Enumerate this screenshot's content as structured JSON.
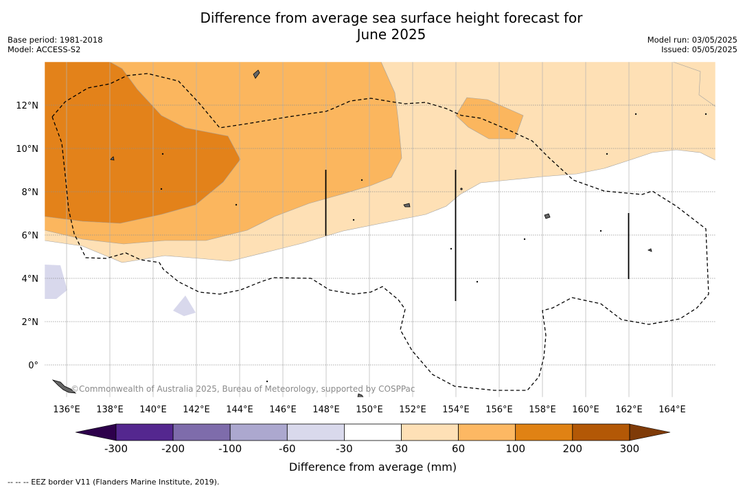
{
  "title_line1": "Difference from average sea surface height forecast for",
  "title_line2": "June 2025",
  "base_period": "Base period: 1981-2018",
  "model": "Model: ACCESS-S2",
  "model_run": "Model run: 03/05/2025",
  "issued": "Issued: 05/05/2025",
  "copyright": "©Commonwealth of Australia 2025, Bureau of Meteorology, supported by COSPPac",
  "footnote": "--  --  -- EEZ border V11 (Flanders Marine Institute, 2019).",
  "lon_labels": [
    "136°E",
    "138°E",
    "140°E",
    "142°E",
    "144°E",
    "146°E",
    "148°E",
    "150°E",
    "152°E",
    "154°E",
    "156°E",
    "158°E",
    "160°E",
    "162°E",
    "164°E"
  ],
  "lat_labels": [
    "12°N",
    "10°N",
    "8°N",
    "6°N",
    "4°N",
    "2°N",
    "0°"
  ],
  "colorbar": {
    "label": "Difference from average (mm)",
    "ticks": [
      "-300",
      "-200",
      "-100",
      "-60",
      "-30",
      "30",
      "60",
      "100",
      "200",
      "300"
    ],
    "colors": [
      "#54278f",
      "#7e6cab",
      "#aca8cf",
      "#d9d9ec",
      "#ffffff",
      "#fee0b6",
      "#fdb863",
      "#e08214",
      "#b35806"
    ],
    "under_color": "#2d004b",
    "over_color": "#7f3b08"
  },
  "colors": {
    "orange_dark": "#e3821a",
    "orange_mid": "#fbb65e",
    "orange_light": "#fee0b5",
    "lavender": "#d8d8ec",
    "eez_line": "#000000"
  }
}
